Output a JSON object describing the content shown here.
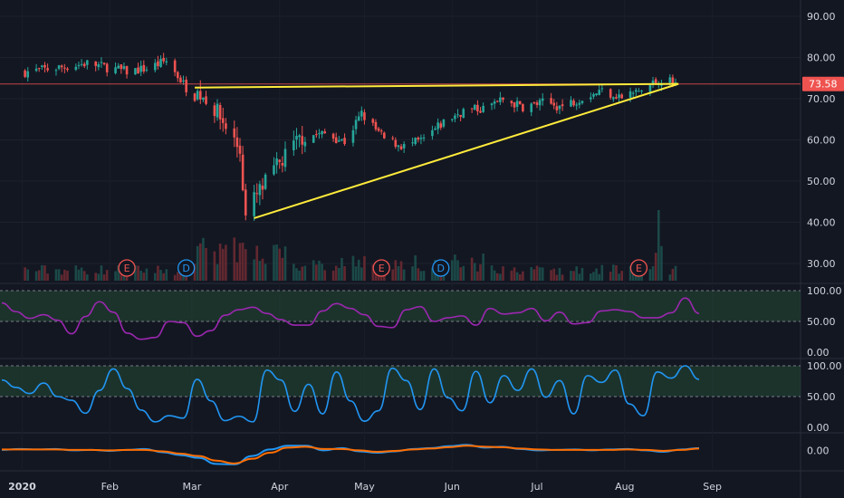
{
  "chart_data": [
    {
      "type": "candlestick",
      "panel": "price",
      "ylim": [
        25,
        95
      ],
      "y_ticks": [
        "90.00",
        "80.00",
        "70.00",
        "60.00",
        "50.00",
        "40.00",
        "30.00"
      ],
      "last_price_label": "73.58",
      "last_price": 73.58,
      "x_ticks": [
        "2020",
        "Feb",
        "Mar",
        "Apr",
        "May",
        "Jun",
        "Jul",
        "Aug",
        "Sep"
      ],
      "close_path": [
        [
          "2020-01-02",
          76.5
        ],
        [
          "2020-01-10",
          77.2
        ],
        [
          "2020-01-17",
          77.8
        ],
        [
          "2020-01-24",
          78.6
        ],
        [
          "2020-01-31",
          77.6
        ],
        [
          "2020-02-07",
          76.6
        ],
        [
          "2020-02-14",
          77.3
        ],
        [
          "2020-02-21",
          79.2
        ],
        [
          "2020-02-28",
          72.7
        ],
        [
          "2020-03-06",
          70.4
        ],
        [
          "2020-03-13",
          63.4
        ],
        [
          "2020-03-18",
          57.4
        ],
        [
          "2020-03-20",
          41.0
        ],
        [
          "2020-03-23",
          45.5
        ],
        [
          "2020-03-31",
          53.3
        ],
        [
          "2020-04-09",
          60.9
        ],
        [
          "2020-04-17",
          61.5
        ],
        [
          "2020-04-24",
          59.6
        ],
        [
          "2020-04-30",
          66.3
        ],
        [
          "2020-05-08",
          60.2
        ],
        [
          "2020-05-15",
          58.4
        ],
        [
          "2020-05-22",
          60.0
        ],
        [
          "2020-05-29",
          64.3
        ],
        [
          "2020-06-05",
          67.1
        ],
        [
          "2020-06-12",
          67.6
        ],
        [
          "2020-06-19",
          69.8
        ],
        [
          "2020-06-26",
          68.0
        ],
        [
          "2020-07-03",
          69.0
        ],
        [
          "2020-07-10",
          68.1
        ],
        [
          "2020-07-17",
          70.4
        ],
        [
          "2020-07-24",
          72.0
        ],
        [
          "2020-07-31",
          70.4
        ],
        [
          "2020-08-07",
          72.0
        ],
        [
          "2020-08-14",
          74.9
        ],
        [
          "2020-08-19",
          73.58
        ]
      ],
      "trendlines": [
        {
          "name": "resistance",
          "from": [
            "2020-03-02",
            72.7
          ],
          "to": [
            "2020-08-20",
            73.6
          ]
        },
        {
          "name": "support",
          "from": [
            "2020-03-23",
            41.0
          ],
          "to": [
            "2020-08-20",
            73.6
          ]
        }
      ],
      "horizontal_line": 73.58,
      "volume_scale_max": 1.0
    },
    {
      "type": "line",
      "panel": "oscillator-1",
      "ylim": [
        0,
        100
      ],
      "y_ticks": [
        "100.00",
        "50.00",
        "0.00"
      ],
      "band": [
        50,
        100
      ],
      "color": "#9c27b0",
      "values": [
        80,
        66,
        55,
        61,
        52,
        30,
        58,
        82,
        65,
        31,
        21,
        24,
        50,
        48,
        26,
        35,
        60,
        69,
        73,
        63,
        53,
        44,
        44,
        67,
        79,
        71,
        61,
        42,
        40,
        69,
        74,
        50,
        56,
        59,
        44,
        71,
        62,
        64,
        71,
        51,
        65,
        46,
        48,
        67,
        69,
        66,
        56,
        56,
        64,
        88,
        63
      ]
    },
    {
      "type": "line",
      "panel": "oscillator-2",
      "ylim": [
        0,
        100
      ],
      "y_ticks": [
        "100.00",
        "50.00",
        "0.00"
      ],
      "band": [
        50,
        100
      ],
      "color": "#2196f3",
      "values": [
        77,
        65,
        55,
        72,
        50,
        44,
        23,
        60,
        95,
        63,
        28,
        9,
        19,
        15,
        78,
        43,
        11,
        18,
        9,
        93,
        77,
        26,
        70,
        22,
        90,
        43,
        10,
        27,
        96,
        76,
        29,
        95,
        48,
        27,
        91,
        40,
        84,
        60,
        95,
        49,
        76,
        22,
        84,
        73,
        93,
        38,
        19,
        90,
        80,
        100,
        78
      ]
    },
    {
      "type": "line",
      "panel": "macd",
      "ylim": [
        -4,
        3
      ],
      "y_ticks": [
        "0.00"
      ],
      "series": [
        {
          "color": "#2196f3",
          "values": [
            0.1,
            0.3,
            0.2,
            0.3,
            0.0,
            0.1,
            -0.1,
            0.1,
            0.3,
            -0.4,
            -1.0,
            -1.6,
            -2.9,
            -3.0,
            -1.2,
            0.2,
            1.0,
            1.0,
            0.0,
            0.5,
            -0.2,
            -0.5,
            -0.2,
            0.3,
            0.5,
            0.9,
            1.2,
            0.6,
            0.8,
            0.3,
            0.0,
            0.1,
            0.2,
            0.0,
            0.2,
            0.3,
            0.0,
            -0.3,
            0.2,
            0.5
          ]
        },
        {
          "color": "#ff6d00",
          "values": [
            0.2,
            0.2,
            0.2,
            0.2,
            0.1,
            0.1,
            0.0,
            0.1,
            0.1,
            -0.2,
            -0.7,
            -1.2,
            -2.2,
            -2.8,
            -1.8,
            -0.5,
            0.6,
            0.8,
            0.3,
            0.3,
            0.0,
            -0.3,
            -0.1,
            0.2,
            0.4,
            0.7,
            1.0,
            0.8,
            0.7,
            0.4,
            0.2,
            0.1,
            0.1,
            0.1,
            0.1,
            0.2,
            0.1,
            -0.1,
            0.1,
            0.4
          ]
        }
      ]
    }
  ],
  "event_markers": [
    {
      "letter": "E",
      "date": "2020-02-07"
    },
    {
      "letter": "D",
      "date": "2020-02-28"
    },
    {
      "letter": "E",
      "date": "2020-05-07"
    },
    {
      "letter": "D",
      "date": "2020-05-28"
    },
    {
      "letter": "E",
      "date": "2020-08-06"
    }
  ],
  "colors": {
    "background": "#131722",
    "up": "#26a69a",
    "down": "#ef5350",
    "trendline": "#ffeb3b",
    "price_label_bg": "#ef5350",
    "band_fill": "#1f3b2f",
    "grid": "#2a2e39",
    "earnings": "#ef5350",
    "dividend": "#2196f3"
  }
}
